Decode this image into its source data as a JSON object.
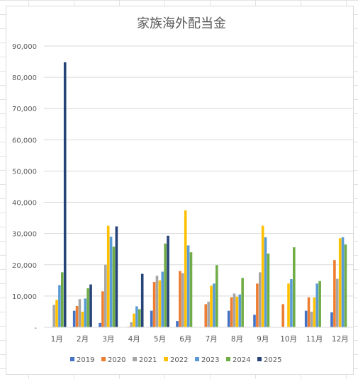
{
  "chart_data": {
    "type": "bar",
    "title": "家族海外配当金",
    "xlabel": "",
    "ylabel": "",
    "ylim": [
      0,
      90000
    ],
    "yticks": [
      "-",
      "10,000",
      "20,000",
      "30,000",
      "40,000",
      "50,000",
      "60,000",
      "70,000",
      "80,000",
      "90,000"
    ],
    "grid": true,
    "legend_position": "bottom",
    "categories": [
      "1月",
      "2月",
      "3月",
      "4月",
      "5月",
      "6月",
      "7月",
      "8月",
      "9月",
      "10月",
      "11月",
      "12月"
    ],
    "series": [
      {
        "name": "2019",
        "color": "#4472c4",
        "values": [
          0,
          5300,
          1400,
          0,
          5300,
          2000,
          0,
          5300,
          4000,
          0,
          5300,
          4800
        ]
      },
      {
        "name": "2020",
        "color": "#ed7d31",
        "values": [
          0,
          6800,
          11500,
          200,
          14500,
          18000,
          7400,
          9600,
          14000,
          7400,
          9600,
          21500
        ]
      },
      {
        "name": "2021",
        "color": "#a5a5a5",
        "values": [
          7200,
          9000,
          20000,
          1600,
          16500,
          17300,
          8200,
          10800,
          17600,
          0,
          5000,
          15500
        ]
      },
      {
        "name": "2022",
        "color": "#ffc000",
        "values": [
          8800,
          5000,
          32500,
          4400,
          15000,
          37400,
          13300,
          9800,
          32500,
          14000,
          9600,
          28500
        ]
      },
      {
        "name": "2023",
        "color": "#5b9bd5",
        "values": [
          13500,
          9200,
          29000,
          6700,
          17800,
          26200,
          14000,
          10500,
          28800,
          15400,
          14000,
          28800
        ]
      },
      {
        "name": "2024",
        "color": "#70ad47",
        "values": [
          17600,
          12500,
          25800,
          5800,
          26800,
          24000,
          19900,
          15800,
          23600,
          25600,
          14800,
          26500
        ]
      },
      {
        "name": "2025",
        "color": "#264478",
        "values": [
          84800,
          13700,
          32300,
          17100,
          29300,
          0,
          0,
          0,
          0,
          0,
          0,
          0
        ]
      }
    ]
  }
}
